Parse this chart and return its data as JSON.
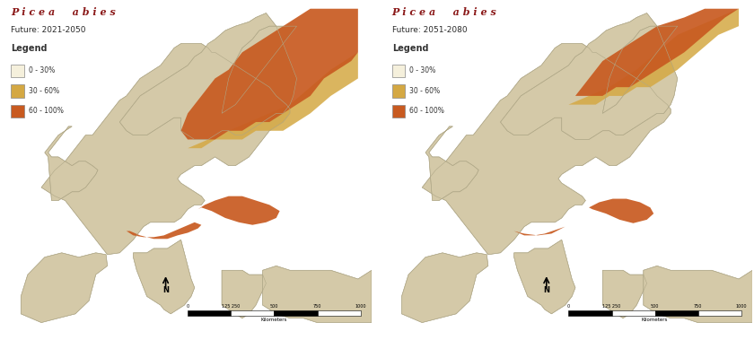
{
  "title_left": "Picea abies",
  "subtitle_left": "Future: 2021-2050",
  "title_right": "Picea abies",
  "subtitle_right": "Future: 2051-2080",
  "legend_title": "Legend",
  "legend_items": [
    {
      "label": "0 - 30%",
      "color": "#f5f0dc"
    },
    {
      "label": "30 - 60%",
      "color": "#d4a843"
    },
    {
      "label": "60 - 100%",
      "color": "#c85a20"
    }
  ],
  "title_color": "#8b1a1a",
  "subtitle_color": "#2a2a2a",
  "legend_label_color": "#333333",
  "bg_color": "#ffffff",
  "map_land_color": "#d4c9a8",
  "map_sea_color": "#ffffff",
  "map_border_color": "#b0a888",
  "figure_width": 8.4,
  "figure_height": 3.79,
  "dpi": 100
}
